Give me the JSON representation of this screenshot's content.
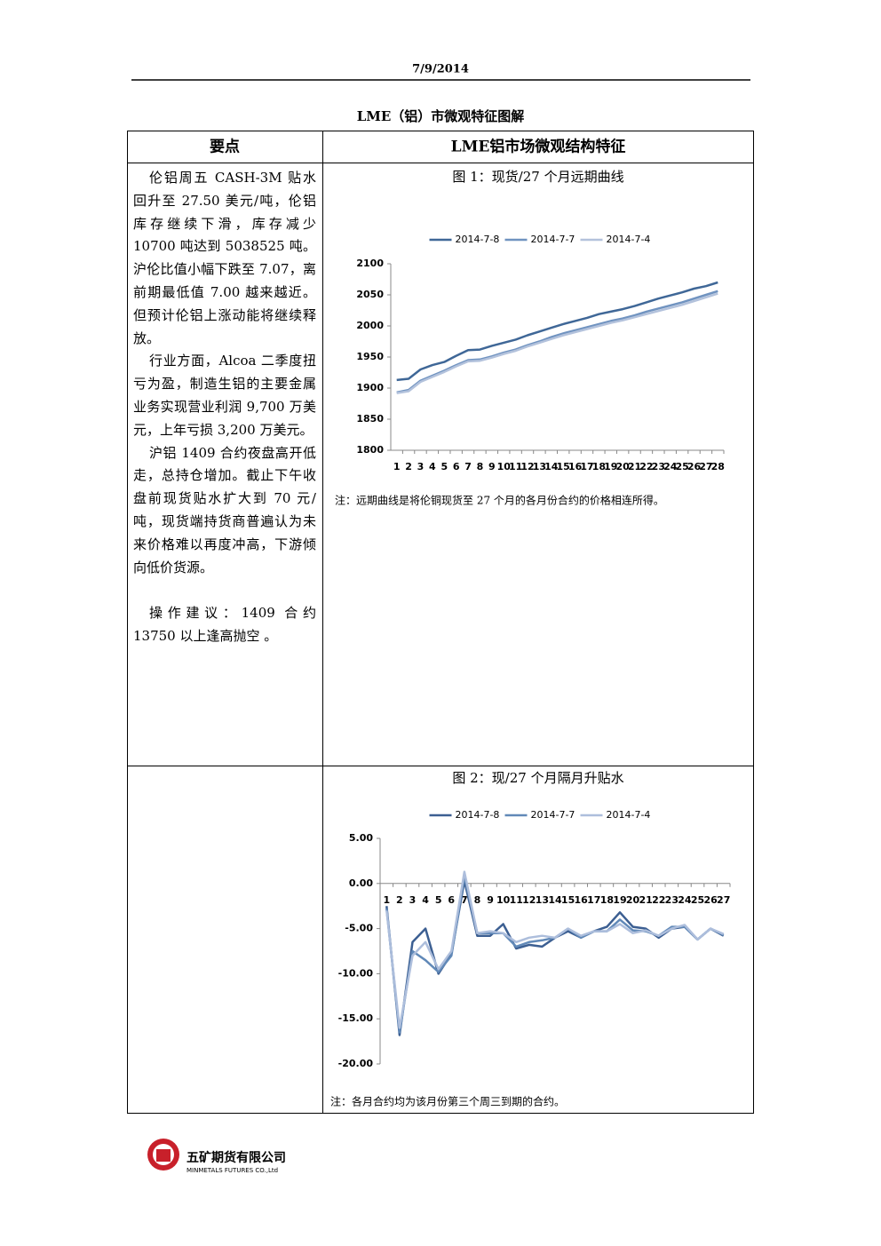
{
  "header": {
    "date": "7/9/2014"
  },
  "table": {
    "title": "LME（铝）市微观特征图解",
    "headers": [
      "要点",
      "LME铝市场微观结构特征"
    ],
    "paragraphs": [
      "伦铝周五 CASH-3M 贴水回升至 27.50 美元/吨，伦铝库存继续下滑，库存减少 10700 吨达到 5038525 吨。 沪伦比值小幅下跌至 7.07，离前期最低值 7.00 越来越近。但预计伦铝上涨动能将继续释放。",
      "行业方面，Alcoa 二季度扭亏为盈，制造生铝的主要金属业务实现营业利润 9,700 万美元，上年亏损 3,200 万美元。",
      "沪铝 1409 合约夜盘高开低走，总持仓增加。截止下午收盘前现货贴水扩大到 70 元/吨，现货端持货商普遍认为未来价格难以再度冲高，下游倾向低价货源。",
      "操作建议：1409 合约 13750 以上逢高抛空 。"
    ]
  },
  "chart_data": [
    {
      "type": "line",
      "title": "图 1：现货/27 个月远期曲线",
      "note": "注：远期曲线是将伦铜现货至 27 个月的各月份合约的价格相连所得。",
      "categories": [
        "1",
        "2",
        "3",
        "4",
        "5",
        "6",
        "7",
        "8",
        "9",
        "10",
        "11",
        "12",
        "13",
        "14",
        "15",
        "16",
        "17",
        "18",
        "19",
        "20",
        "21",
        "22",
        "23",
        "24",
        "25",
        "26",
        "27",
        "28"
      ],
      "ylim": [
        1800,
        2100
      ],
      "yticks": [
        1800,
        1850,
        1900,
        1950,
        2000,
        2050,
        2100
      ],
      "series": [
        {
          "name": "2014-7-8",
          "color": "#3f6797",
          "values": [
            1913,
            1915,
            1930,
            1937,
            1942,
            1952,
            1961,
            1962,
            1968,
            1973,
            1978,
            1985,
            1991,
            1997,
            2003,
            2008,
            2013,
            2019,
            2023,
            2027,
            2032,
            2038,
            2044,
            2049,
            2054,
            2060,
            2064,
            2070
          ]
        },
        {
          "name": "2014-7-7",
          "color": "#7093c0",
          "values": [
            1893,
            1897,
            1912,
            1920,
            1928,
            1937,
            1945,
            1946,
            1951,
            1957,
            1962,
            1969,
            1975,
            1982,
            1988,
            1993,
            1998,
            2003,
            2008,
            2012,
            2017,
            2023,
            2028,
            2033,
            2038,
            2044,
            2050,
            2056
          ]
        },
        {
          "name": "2014-7-4",
          "color": "#b3c2dc",
          "values": [
            1892,
            1895,
            1910,
            1918,
            1926,
            1935,
            1943,
            1944,
            1949,
            1955,
            1960,
            1967,
            1973,
            1979,
            1985,
            1990,
            1995,
            2000,
            2005,
            2009,
            2014,
            2019,
            2024,
            2029,
            2034,
            2040,
            2046,
            2052
          ]
        }
      ]
    },
    {
      "type": "line",
      "title": "图 2：现/27 个月隔月升贴水",
      "note": "注：各月合约均为该月份第三个周三到期的合约。",
      "categories": [
        "1",
        "2",
        "3",
        "4",
        "5",
        "6",
        "7",
        "8",
        "9",
        "10",
        "11",
        "12",
        "13",
        "14",
        "15",
        "16",
        "17",
        "18",
        "19",
        "20",
        "21",
        "22",
        "23",
        "24",
        "25",
        "26",
        "27"
      ],
      "ylim": [
        -20,
        5
      ],
      "yticks": [
        {
          "value": -20,
          "label": "-20.00"
        },
        {
          "value": -15,
          "label": "-15.00"
        },
        {
          "value": -10,
          "label": "-10.00"
        },
        {
          "value": -5,
          "label": "-5.00"
        },
        {
          "value": 0,
          "label": "0.00"
        },
        {
          "value": 5,
          "label": "5.00"
        }
      ],
      "series": [
        {
          "name": "2014-7-8",
          "color": "#3c5f92",
          "values": [
            -2.5,
            -16.8,
            -6.5,
            -5.0,
            -10.0,
            -7.8,
            0.3,
            -5.8,
            -5.8,
            -4.5,
            -7.2,
            -6.8,
            -7.0,
            -6.0,
            -5.3,
            -6.0,
            -5.3,
            -4.8,
            -3.2,
            -4.8,
            -5.0,
            -6.0,
            -5.0,
            -4.8,
            -6.2,
            -5.0,
            -5.8
          ]
        },
        {
          "name": "2014-7-7",
          "color": "#6189b8",
          "values": [
            -2.8,
            -16.5,
            -7.5,
            -8.5,
            -9.8,
            -8.0,
            0.8,
            -5.5,
            -5.5,
            -5.5,
            -7.0,
            -6.5,
            -6.3,
            -6.0,
            -5.0,
            -6.0,
            -5.3,
            -5.3,
            -4.0,
            -5.2,
            -5.3,
            -5.8,
            -4.8,
            -4.8,
            -6.2,
            -5.0,
            -5.7
          ]
        },
        {
          "name": "2014-7-4",
          "color": "#adbedc",
          "values": [
            -3.0,
            -16.0,
            -8.0,
            -6.5,
            -9.5,
            -7.5,
            1.3,
            -5.5,
            -5.3,
            -5.5,
            -6.5,
            -6.0,
            -5.8,
            -6.0,
            -5.0,
            -5.8,
            -5.3,
            -5.3,
            -4.5,
            -5.5,
            -5.2,
            -5.8,
            -5.0,
            -4.6,
            -6.2,
            -5.0,
            -5.6
          ]
        }
      ]
    }
  ],
  "footer": {
    "company": "五矿期货有限公司",
    "company_en": "MINMETALS FUTURES CO.,Ltd"
  }
}
